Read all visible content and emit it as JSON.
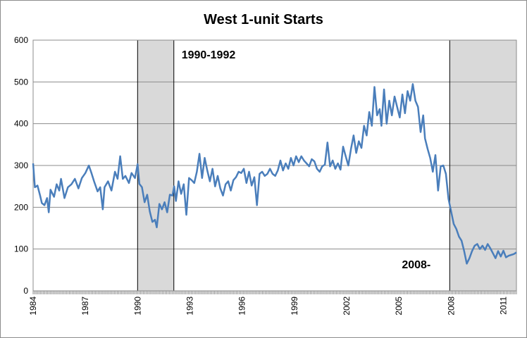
{
  "chart_data": {
    "type": "line",
    "title": "West 1-unit Starts",
    "xlabel": "",
    "ylabel": "",
    "ylim": [
      0,
      600
    ],
    "xlim": [
      1984.0,
      2011.75
    ],
    "yticks": [
      0,
      100,
      200,
      300,
      400,
      500,
      600
    ],
    "xticks": [
      "1984",
      "1987",
      "1990",
      "1993",
      "1996",
      "1999",
      "2002",
      "2005",
      "2008",
      "2011"
    ],
    "grid": true,
    "legend": "none",
    "line_color": "#4a7ebb",
    "shade_color": "#d9d9d9",
    "recessions": [
      {
        "start": 1990.0,
        "end": 1992.08,
        "label": "1990-1992"
      },
      {
        "start": 2007.92,
        "end": 2011.75,
        "label": "2008-"
      }
    ],
    "series": [
      {
        "name": "",
        "points": [
          [
            1984.0,
            305
          ],
          [
            1984.1,
            248
          ],
          [
            1984.25,
            252
          ],
          [
            1984.4,
            228
          ],
          [
            1984.5,
            210
          ],
          [
            1984.65,
            205
          ],
          [
            1984.8,
            222
          ],
          [
            1984.9,
            188
          ],
          [
            1985.0,
            242
          ],
          [
            1985.2,
            225
          ],
          [
            1985.35,
            255
          ],
          [
            1985.5,
            240
          ],
          [
            1985.6,
            268
          ],
          [
            1985.8,
            222
          ],
          [
            1986.0,
            248
          ],
          [
            1986.2,
            255
          ],
          [
            1986.4,
            268
          ],
          [
            1986.6,
            245
          ],
          [
            1986.8,
            270
          ],
          [
            1987.0,
            282
          ],
          [
            1987.2,
            300
          ],
          [
            1987.35,
            282
          ],
          [
            1987.5,
            262
          ],
          [
            1987.7,
            238
          ],
          [
            1987.85,
            248
          ],
          [
            1988.0,
            195
          ],
          [
            1988.1,
            248
          ],
          [
            1988.3,
            262
          ],
          [
            1988.5,
            240
          ],
          [
            1988.7,
            285
          ],
          [
            1988.85,
            268
          ],
          [
            1989.0,
            322
          ],
          [
            1989.15,
            268
          ],
          [
            1989.3,
            275
          ],
          [
            1989.5,
            258
          ],
          [
            1989.65,
            282
          ],
          [
            1989.85,
            270
          ],
          [
            1990.0,
            303
          ],
          [
            1990.1,
            256
          ],
          [
            1990.25,
            248
          ],
          [
            1990.4,
            212
          ],
          [
            1990.55,
            230
          ],
          [
            1990.7,
            190
          ],
          [
            1990.85,
            165
          ],
          [
            1991.0,
            170
          ],
          [
            1991.1,
            152
          ],
          [
            1991.25,
            208
          ],
          [
            1991.4,
            195
          ],
          [
            1991.55,
            212
          ],
          [
            1991.7,
            188
          ],
          [
            1991.85,
            230
          ],
          [
            1992.0,
            228
          ],
          [
            1992.1,
            250
          ],
          [
            1992.2,
            215
          ],
          [
            1992.35,
            262
          ],
          [
            1992.5,
            232
          ],
          [
            1992.65,
            255
          ],
          [
            1992.8,
            182
          ],
          [
            1992.95,
            270
          ],
          [
            1993.1,
            265
          ],
          [
            1993.25,
            258
          ],
          [
            1993.4,
            285
          ],
          [
            1993.55,
            328
          ],
          [
            1993.7,
            270
          ],
          [
            1993.85,
            318
          ],
          [
            1994.0,
            288
          ],
          [
            1994.15,
            262
          ],
          [
            1994.3,
            292
          ],
          [
            1994.45,
            250
          ],
          [
            1994.6,
            275
          ],
          [
            1994.75,
            245
          ],
          [
            1994.9,
            228
          ],
          [
            1995.05,
            255
          ],
          [
            1995.2,
            262
          ],
          [
            1995.35,
            240
          ],
          [
            1995.5,
            265
          ],
          [
            1995.65,
            272
          ],
          [
            1995.8,
            285
          ],
          [
            1995.95,
            282
          ],
          [
            1996.1,
            292
          ],
          [
            1996.25,
            258
          ],
          [
            1996.4,
            285
          ],
          [
            1996.55,
            252
          ],
          [
            1996.7,
            272
          ],
          [
            1996.85,
            205
          ],
          [
            1997.0,
            280
          ],
          [
            1997.15,
            285
          ],
          [
            1997.3,
            275
          ],
          [
            1997.45,
            280
          ],
          [
            1997.6,
            292
          ],
          [
            1997.75,
            280
          ],
          [
            1997.9,
            275
          ],
          [
            1998.05,
            288
          ],
          [
            1998.2,
            312
          ],
          [
            1998.35,
            288
          ],
          [
            1998.5,
            305
          ],
          [
            1998.65,
            292
          ],
          [
            1998.8,
            318
          ],
          [
            1998.95,
            300
          ],
          [
            1999.1,
            322
          ],
          [
            1999.25,
            308
          ],
          [
            1999.4,
            322
          ],
          [
            1999.55,
            312
          ],
          [
            1999.7,
            305
          ],
          [
            1999.85,
            298
          ],
          [
            2000.0,
            315
          ],
          [
            2000.15,
            310
          ],
          [
            2000.3,
            292
          ],
          [
            2000.45,
            285
          ],
          [
            2000.6,
            298
          ],
          [
            2000.75,
            302
          ],
          [
            2000.9,
            355
          ],
          [
            2001.05,
            298
          ],
          [
            2001.2,
            312
          ],
          [
            2001.35,
            292
          ],
          [
            2001.5,
            305
          ],
          [
            2001.65,
            290
          ],
          [
            2001.8,
            345
          ],
          [
            2001.95,
            322
          ],
          [
            2002.1,
            300
          ],
          [
            2002.25,
            340
          ],
          [
            2002.4,
            372
          ],
          [
            2002.55,
            330
          ],
          [
            2002.7,
            358
          ],
          [
            2002.85,
            342
          ],
          [
            2003.0,
            395
          ],
          [
            2003.15,
            372
          ],
          [
            2003.3,
            428
          ],
          [
            2003.45,
            395
          ],
          [
            2003.6,
            488
          ],
          [
            2003.75,
            420
          ],
          [
            2003.9,
            435
          ],
          [
            2004.0,
            395
          ],
          [
            2004.15,
            482
          ],
          [
            2004.3,
            400
          ],
          [
            2004.45,
            455
          ],
          [
            2004.6,
            420
          ],
          [
            2004.75,
            465
          ],
          [
            2004.9,
            440
          ],
          [
            2005.05,
            415
          ],
          [
            2005.2,
            470
          ],
          [
            2005.35,
            425
          ],
          [
            2005.5,
            478
          ],
          [
            2005.65,
            455
          ],
          [
            2005.8,
            495
          ],
          [
            2005.95,
            455
          ],
          [
            2006.1,
            440
          ],
          [
            2006.25,
            380
          ],
          [
            2006.4,
            420
          ],
          [
            2006.5,
            365
          ],
          [
            2006.65,
            340
          ],
          [
            2006.8,
            318
          ],
          [
            2006.95,
            285
          ],
          [
            2007.1,
            325
          ],
          [
            2007.25,
            240
          ],
          [
            2007.4,
            298
          ],
          [
            2007.55,
            300
          ],
          [
            2007.7,
            280
          ],
          [
            2007.85,
            220
          ],
          [
            2008.0,
            190
          ],
          [
            2008.15,
            160
          ],
          [
            2008.3,
            148
          ],
          [
            2008.45,
            130
          ],
          [
            2008.6,
            120
          ],
          [
            2008.75,
            95
          ],
          [
            2008.9,
            65
          ],
          [
            2009.05,
            78
          ],
          [
            2009.2,
            95
          ],
          [
            2009.35,
            108
          ],
          [
            2009.5,
            112
          ],
          [
            2009.65,
            100
          ],
          [
            2009.8,
            108
          ],
          [
            2009.95,
            98
          ],
          [
            2010.1,
            112
          ],
          [
            2010.25,
            102
          ],
          [
            2010.4,
            90
          ],
          [
            2010.55,
            78
          ],
          [
            2010.7,
            95
          ],
          [
            2010.85,
            82
          ],
          [
            2011.0,
            96
          ],
          [
            2011.15,
            80
          ],
          [
            2011.3,
            84
          ],
          [
            2011.45,
            86
          ],
          [
            2011.6,
            88
          ],
          [
            2011.75,
            92
          ]
        ]
      }
    ]
  }
}
